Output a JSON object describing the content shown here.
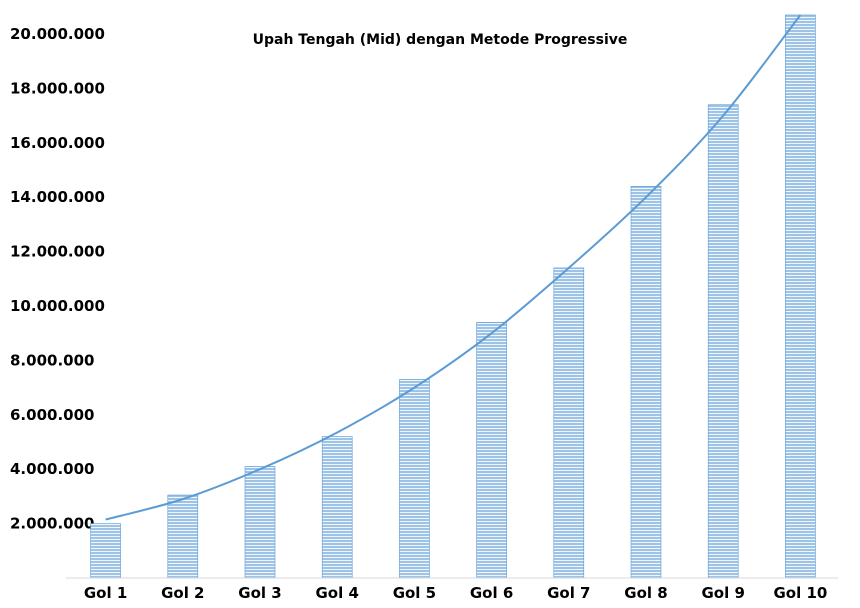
{
  "chart_data": {
    "type": "bar",
    "title": "Upah Tengah (Mid) dengan Metode Progressive",
    "xlabel": "",
    "ylabel": "",
    "categories": [
      "Gol 1",
      "Gol 2",
      "Gol 3",
      "Gol 4",
      "Gol 5",
      "Gol 6",
      "Gol 7",
      "Gol 8",
      "Gol 9",
      "Gol 10"
    ],
    "series": [
      {
        "values": [
          2000000,
          3050000,
          4100000,
          5200000,
          7300000,
          9400000,
          11400000,
          14400000,
          17400000,
          20700000
        ]
      }
    ],
    "trendline": {
      "type": "polynomial",
      "values": [
        2150000,
        2900000,
        4000000,
        5350000,
        7000000,
        9000000,
        11400000,
        14000000,
        17000000,
        20700000
      ]
    },
    "ylim": [
      0,
      21500000
    ],
    "yticks": [
      {
        "value": 2000000,
        "label": "2.000.000"
      },
      {
        "value": 4000000,
        "label": "4.000.000"
      },
      {
        "value": 6000000,
        "label": "6.000.000"
      },
      {
        "value": 8000000,
        "label": "8.000.000"
      },
      {
        "value": 10000000,
        "label": "10.000.000"
      },
      {
        "value": 12000000,
        "label": "12.000.000"
      },
      {
        "value": 14000000,
        "label": "14.000.000"
      },
      {
        "value": 16000000,
        "label": "16.000.000"
      },
      {
        "value": 18000000,
        "label": "18.000.000"
      },
      {
        "value": 20000000,
        "label": "20.000.000"
      }
    ],
    "grid": false,
    "legend": "none",
    "colors": {
      "bar_fill": "#9dc3e6",
      "bar_stripe": "#ffffff",
      "bar_edge": "#5b9bd5",
      "trendline": "#5b9bd5",
      "axis": "#d9d9d9"
    }
  }
}
